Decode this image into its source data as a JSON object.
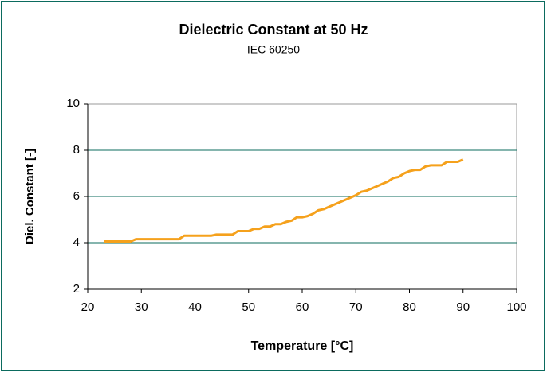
{
  "chart_data": {
    "type": "line",
    "title": "Dielectric Constant at 50 Hz",
    "subtitle": "IEC 60250",
    "x_label": "Temperature [°C]",
    "y_label": "Diel. Constant [-]",
    "x": [
      23,
      28,
      29,
      37,
      38,
      43,
      44,
      47,
      48,
      50,
      51,
      52,
      53,
      54,
      55,
      56,
      57,
      58,
      59,
      60,
      61,
      62,
      63,
      64,
      65,
      66,
      67,
      68,
      69,
      70,
      71,
      72,
      73,
      74,
      75,
      76,
      77,
      78,
      79,
      80,
      81,
      82,
      83,
      84,
      85,
      86,
      87,
      88,
      89,
      90
    ],
    "values": [
      4.05,
      4.05,
      4.15,
      4.15,
      4.3,
      4.3,
      4.35,
      4.35,
      4.5,
      4.5,
      4.6,
      4.6,
      4.7,
      4.7,
      4.8,
      4.8,
      4.9,
      4.95,
      5.1,
      5.1,
      5.15,
      5.25,
      5.4,
      5.45,
      5.55,
      5.65,
      5.75,
      5.85,
      5.95,
      6.05,
      6.2,
      6.25,
      6.35,
      6.45,
      6.55,
      6.65,
      6.8,
      6.85,
      7.0,
      7.1,
      7.15,
      7.15,
      7.3,
      7.35,
      7.35,
      7.35,
      7.5,
      7.5,
      7.5,
      7.6
    ],
    "color": "#f5a11c",
    "xlim": [
      20,
      100
    ],
    "xticks": [
      20,
      30,
      40,
      50,
      60,
      70,
      80,
      90,
      100
    ],
    "ylim": [
      2,
      10
    ],
    "yticks": [
      2,
      4,
      6,
      8,
      10
    ],
    "grid": true
  }
}
